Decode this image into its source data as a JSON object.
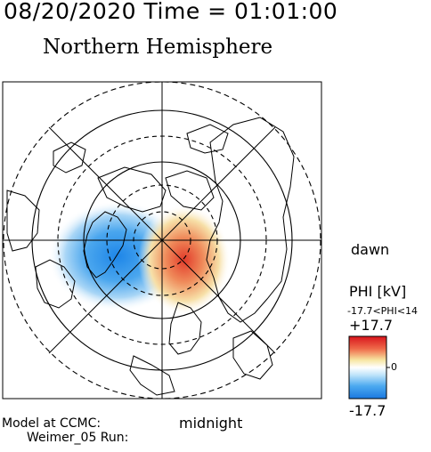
{
  "header": {
    "timestamp": "08/20/2020 Time = 01:01:00",
    "title": "Northern Hemisphere"
  },
  "orientation": {
    "dawn": "dawn",
    "midnight": "midnight"
  },
  "footer": {
    "model_line": "Model at CCMC:",
    "run_line": "Weimer_05 Run:"
  },
  "colorbar": {
    "title": "PHI [kV]",
    "range_text": "-17.7<PHI<14",
    "max_label": "+17.7",
    "zero_label": "0",
    "min_label": "-17.7",
    "colors": [
      "#3a8de6",
      "#ffffff",
      "#e0301e"
    ]
  },
  "map": {
    "projection": "polar",
    "potential_cells": [
      {
        "name": "negative-cell",
        "sign": "negative"
      },
      {
        "name": "positive-cell",
        "sign": "positive"
      }
    ]
  }
}
